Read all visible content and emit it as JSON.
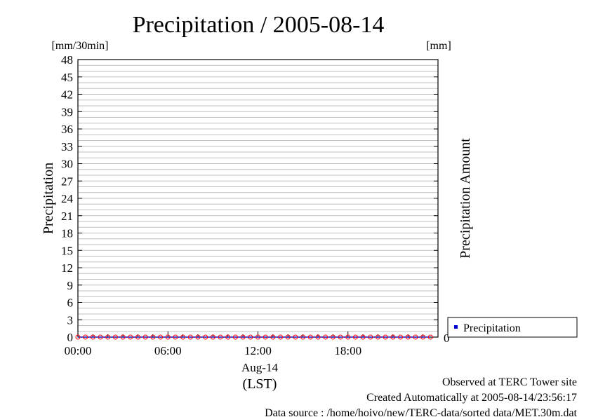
{
  "chart_data": {
    "type": "scatter",
    "title": "Precipitation / 2005-08-14",
    "left_unit": "[mm/30min]",
    "right_unit": "[mm]",
    "ylabel": "Precipitation",
    "y2label": "Precipitation Amount",
    "ylim": [
      0,
      48
    ],
    "y_ticks": [
      0,
      3,
      6,
      9,
      12,
      15,
      18,
      21,
      24,
      27,
      30,
      33,
      36,
      39,
      42,
      45,
      48
    ],
    "y2_tick": "0",
    "xlim_hours": [
      0,
      24
    ],
    "x_ticks": [
      {
        "hour": 0,
        "label": "00:00"
      },
      {
        "hour": 6,
        "label": "06:00"
      },
      {
        "hour": 12,
        "label": "12:00"
      },
      {
        "hour": 18,
        "label": "18:00"
      }
    ],
    "x_date": "Aug-14",
    "x_zone": "(LST)",
    "grid": true,
    "legend_position": "right",
    "series": [
      {
        "name": "Precipitation",
        "color": "#0000cc",
        "marker_color": "#ff0000",
        "x_hours": [
          0,
          0.5,
          1,
          1.5,
          2,
          2.5,
          3,
          3.5,
          4,
          4.5,
          5,
          5.5,
          6,
          6.5,
          7,
          7.5,
          8,
          8.5,
          9,
          9.5,
          10,
          10.5,
          11,
          11.5,
          12,
          12.5,
          13,
          13.5,
          14,
          14.5,
          15,
          15.5,
          16,
          16.5,
          17,
          17.5,
          18,
          18.5,
          19,
          19.5,
          20,
          20.5,
          21,
          21.5,
          22,
          22.5,
          23,
          23.5
        ],
        "values": [
          0,
          0,
          0,
          0,
          0,
          0,
          0,
          0,
          0,
          0,
          0,
          0,
          0,
          0,
          0,
          0,
          0,
          0,
          0,
          0,
          0,
          0,
          0,
          0,
          0,
          0,
          0,
          0,
          0,
          0,
          0,
          0,
          0,
          0,
          0,
          0,
          0,
          0,
          0,
          0,
          0,
          0,
          0,
          0,
          0,
          0,
          0,
          0
        ]
      }
    ]
  },
  "footer": {
    "line1": "Observed at TERC Tower site",
    "line2": "Created Automatically at 2005-08-14/23:56:17",
    "line3": "Data source : /home/hoivo/new/TERC-data/sorted  data/MET.30m.dat"
  }
}
